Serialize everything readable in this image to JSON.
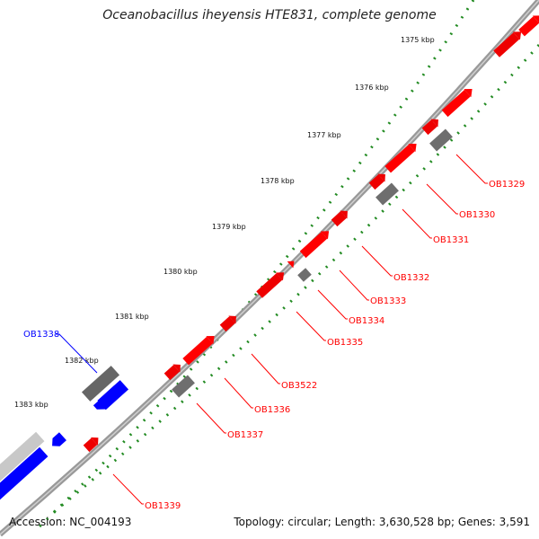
{
  "title": "Oceanobacillus iheyensis HTE831, complete genome",
  "footer": {
    "accession": "Accession: NC_004193",
    "summary": "Topology: circular; Length: 3,630,528 bp; Genes: 3,591"
  },
  "colors": {
    "forward": "#ff0000",
    "reverse": "#0000ff",
    "other": "#777777",
    "tick": "#228b22",
    "backbone": "#888888"
  },
  "ticks": [
    {
      "label": "1375 kbp"
    },
    {
      "label": "1376 kbp"
    },
    {
      "label": "1377 kbp"
    },
    {
      "label": "1378 kbp"
    },
    {
      "label": "1379 kbp"
    },
    {
      "label": "1380 kbp"
    },
    {
      "label": "1381 kbp"
    },
    {
      "label": "1382 kbp"
    },
    {
      "label": "1383 kbp"
    }
  ],
  "genes": [
    {
      "name": "OB1329",
      "strand": "forward"
    },
    {
      "name": "OB1330",
      "strand": "forward"
    },
    {
      "name": "OB1331",
      "strand": "forward"
    },
    {
      "name": "OB1332",
      "strand": "forward"
    },
    {
      "name": "OB1333",
      "strand": "forward"
    },
    {
      "name": "OB1334",
      "strand": "forward"
    },
    {
      "name": "OB1335",
      "strand": "forward"
    },
    {
      "name": "OB3522",
      "strand": "forward"
    },
    {
      "name": "OB1336",
      "strand": "forward"
    },
    {
      "name": "OB1337",
      "strand": "forward"
    },
    {
      "name": "OB1338",
      "strand": "reverse"
    },
    {
      "name": "OB1339",
      "strand": "forward"
    }
  ]
}
